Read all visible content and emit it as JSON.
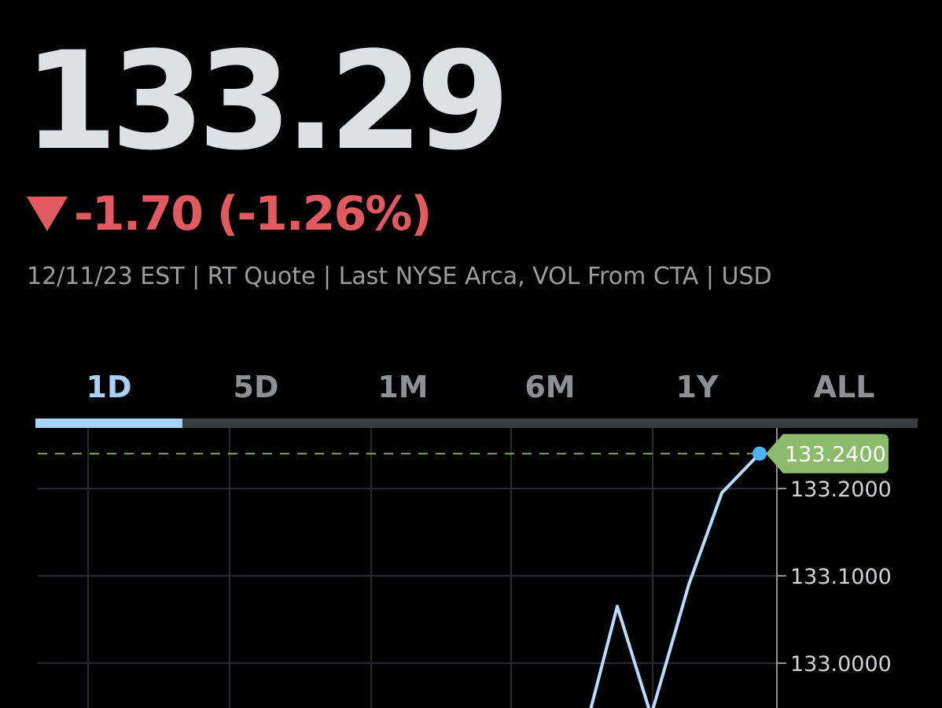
{
  "quote": {
    "price": "133.29",
    "change": "-1.70 (-1.26%)",
    "meta": "12/11/23 EST | RT Quote | Last NYSE Arca, VOL From CTA | USD"
  },
  "tabs": [
    {
      "label": "1D",
      "active": true
    },
    {
      "label": "5D",
      "active": false
    },
    {
      "label": "1M",
      "active": false
    },
    {
      "label": "6M",
      "active": false
    },
    {
      "label": "1Y",
      "active": false
    },
    {
      "label": "ALL",
      "active": false
    }
  ],
  "colors": {
    "price": "#dde0e5",
    "negative": "#e05a5f",
    "active_tab": "#a9d2f7",
    "line": "#b9dcff",
    "current_dot": "#4db3ff",
    "current_label_bg": "#8dbb6e"
  },
  "chart_data": {
    "type": "line",
    "y_ticks": [
      "133.2000",
      "133.1000",
      "133.0000"
    ],
    "y_tick_values": [
      133.2,
      133.1,
      133.0
    ],
    "current_value": 133.24,
    "current_label": "133.2400",
    "visible_points": [
      {
        "value": 132.95
      },
      {
        "value": 133.065
      },
      {
        "value": 132.94
      },
      {
        "value": 133.09
      },
      {
        "value": 133.195
      },
      {
        "value": 133.24
      }
    ],
    "grid": true,
    "value_axis_position": "right"
  }
}
